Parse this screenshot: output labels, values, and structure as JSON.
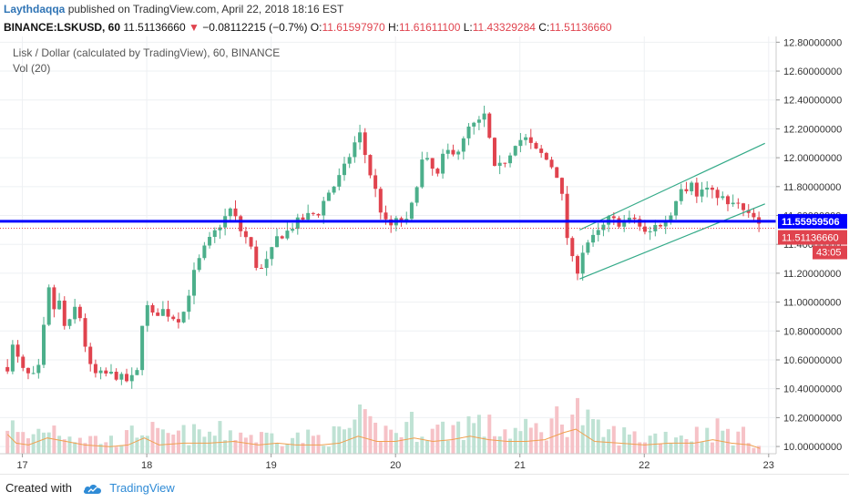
{
  "header": {
    "author": "Laythdaqqa",
    "published_text": "published on TradingView.com, April 22, 2018 18:16 EST"
  },
  "quote": {
    "symbol": "BINANCE:LSKUSD, 60",
    "last": "11.51136660",
    "arrow": "▼",
    "change": "−0.08112215 (−0.7%)",
    "o_label": "O:",
    "o": "11.61597970",
    "h_label": "H:",
    "h": "11.61611100",
    "l_label": "L:",
    "l": "11.43329284",
    "c_label": "C:",
    "c": "11.51136660"
  },
  "legend": {
    "title": "Lisk / Dollar (calculated by TradingView), 60, BINANCE",
    "volume": "Vol (20)"
  },
  "footer": {
    "created_with": "Created with",
    "brand": "TradingView"
  },
  "colors": {
    "up": "#4caf8b",
    "down": "#e0434e",
    "up_vol": "#bfe2d4",
    "down_vol": "#f6c2c7",
    "hline": "#0000ff",
    "channel": "#33aa88",
    "vol_ma": "#f0a050",
    "price_label_bg": "#e0434e",
    "hline_label_bg": "#0000ff"
  },
  "chart_data": {
    "type": "candlestick",
    "title": "Lisk / Dollar (calculated by TradingView), 60, BINANCE",
    "x_tick_labels": [
      "17",
      "18",
      "19",
      "20",
      "21",
      "22",
      "23"
    ],
    "y_tick_labels": [
      "10.00000000",
      "10.20000000",
      "10.40000000",
      "10.60000000",
      "10.80000000",
      "11.00000000",
      "11.20000000",
      "11.40000000",
      "11.60000000",
      "11.80000000",
      "12.00000000",
      "12.20000000",
      "12.40000000",
      "12.60000000",
      "12.80000000"
    ],
    "ylim": [
      9.95,
      12.84
    ],
    "horizontal_line": {
      "value": 11.55959506,
      "label": "11.55959506"
    },
    "last_price": {
      "value": 11.5113666,
      "label": "11.51136660",
      "countdown": "43:05"
    },
    "trend_channel": [
      {
        "start": {
          "x": 21.48,
          "y": 11.16
        },
        "end": {
          "x": 22.97,
          "y": 11.68
        }
      },
      {
        "start": {
          "x": 21.48,
          "y": 11.5
        },
        "end": {
          "x": 22.97,
          "y": 12.1
        }
      }
    ],
    "price_path": [
      [
        16.88,
        10.55
      ],
      [
        16.93,
        10.72
      ],
      [
        16.98,
        10.55
      ],
      [
        17.03,
        10.5
      ],
      [
        17.1,
        10.48
      ],
      [
        17.15,
        10.58
      ],
      [
        17.2,
        11.13
      ],
      [
        17.25,
        10.95
      ],
      [
        17.3,
        11.0
      ],
      [
        17.35,
        10.78
      ],
      [
        17.42,
        10.96
      ],
      [
        17.48,
        10.87
      ],
      [
        17.52,
        10.6
      ],
      [
        17.57,
        10.5
      ],
      [
        17.65,
        10.5
      ],
      [
        17.72,
        10.5
      ],
      [
        17.78,
        10.48
      ],
      [
        17.85,
        10.45
      ],
      [
        17.92,
        10.5
      ],
      [
        17.98,
        11.0
      ],
      [
        18.05,
        10.9
      ],
      [
        18.12,
        10.95
      ],
      [
        18.2,
        10.9
      ],
      [
        18.28,
        10.88
      ],
      [
        18.38,
        11.2
      ],
      [
        18.45,
        11.35
      ],
      [
        18.52,
        11.45
      ],
      [
        18.6,
        11.55
      ],
      [
        18.68,
        11.65
      ],
      [
        18.75,
        11.5
      ],
      [
        18.82,
        11.42
      ],
      [
        18.9,
        11.2
      ],
      [
        18.98,
        11.3
      ],
      [
        19.05,
        11.45
      ],
      [
        19.12,
        11.48
      ],
      [
        19.2,
        11.55
      ],
      [
        19.3,
        11.6
      ],
      [
        19.38,
        11.62
      ],
      [
        19.45,
        11.75
      ],
      [
        19.52,
        11.82
      ],
      [
        19.6,
        11.95
      ],
      [
        19.68,
        12.12
      ],
      [
        19.72,
        12.17
      ],
      [
        19.77,
        11.96
      ],
      [
        19.85,
        11.74
      ],
      [
        19.9,
        11.57
      ],
      [
        19.95,
        11.52
      ],
      [
        20.02,
        11.57
      ],
      [
        20.1,
        11.55
      ],
      [
        20.17,
        11.82
      ],
      [
        20.22,
        12.0
      ],
      [
        20.28,
        11.95
      ],
      [
        20.33,
        11.85
      ],
      [
        20.38,
        12.0
      ],
      [
        20.43,
        12.05
      ],
      [
        20.5,
        12.05
      ],
      [
        20.55,
        12.12
      ],
      [
        20.6,
        12.23
      ],
      [
        20.65,
        12.22
      ],
      [
        20.72,
        12.3
      ],
      [
        20.8,
        11.9
      ],
      [
        20.85,
        11.95
      ],
      [
        20.9,
        12.0
      ],
      [
        20.97,
        12.12
      ],
      [
        21.05,
        12.13
      ],
      [
        21.12,
        12.05
      ],
      [
        21.18,
        12.02
      ],
      [
        21.25,
        11.95
      ],
      [
        21.32,
        11.85
      ],
      [
        21.38,
        11.45
      ],
      [
        21.45,
        11.18
      ],
      [
        21.5,
        11.35
      ],
      [
        21.55,
        11.42
      ],
      [
        21.6,
        11.45
      ],
      [
        21.65,
        11.5
      ],
      [
        21.72,
        11.58
      ],
      [
        21.78,
        11.55
      ],
      [
        21.85,
        11.55
      ],
      [
        21.92,
        11.58
      ],
      [
        21.98,
        11.5
      ],
      [
        22.03,
        11.45
      ],
      [
        22.08,
        11.55
      ],
      [
        22.13,
        11.52
      ],
      [
        22.18,
        11.58
      ],
      [
        22.23,
        11.62
      ],
      [
        22.28,
        11.82
      ],
      [
        22.33,
        11.78
      ],
      [
        22.38,
        11.85
      ],
      [
        22.43,
        11.7
      ],
      [
        22.48,
        11.82
      ],
      [
        22.53,
        11.75
      ],
      [
        22.58,
        11.75
      ],
      [
        22.63,
        11.72
      ],
      [
        22.68,
        11.65
      ],
      [
        22.73,
        11.7
      ],
      [
        22.78,
        11.64
      ],
      [
        22.83,
        11.6
      ],
      [
        22.88,
        11.58
      ],
      [
        22.93,
        11.51
      ]
    ],
    "volume_path": [
      [
        16.88,
        0.55
      ],
      [
        16.95,
        0.3
      ],
      [
        17.05,
        0.25
      ],
      [
        17.2,
        0.45
      ],
      [
        17.35,
        0.35
      ],
      [
        17.5,
        0.25
      ],
      [
        17.7,
        0.2
      ],
      [
        17.85,
        0.25
      ],
      [
        17.98,
        0.45
      ],
      [
        18.1,
        0.25
      ],
      [
        18.3,
        0.3
      ],
      [
        18.5,
        0.3
      ],
      [
        18.7,
        0.35
      ],
      [
        18.9,
        0.25
      ],
      [
        19.05,
        0.3
      ],
      [
        19.2,
        0.25
      ],
      [
        19.4,
        0.25
      ],
      [
        19.55,
        0.3
      ],
      [
        19.7,
        0.5
      ],
      [
        19.85,
        0.35
      ],
      [
        20.0,
        0.35
      ],
      [
        20.15,
        0.45
      ],
      [
        20.3,
        0.35
      ],
      [
        20.45,
        0.4
      ],
      [
        20.6,
        0.5
      ],
      [
        20.75,
        0.4
      ],
      [
        20.9,
        0.35
      ],
      [
        21.05,
        0.35
      ],
      [
        21.2,
        0.4
      ],
      [
        21.35,
        0.6
      ],
      [
        21.45,
        0.7
      ],
      [
        21.6,
        0.35
      ],
      [
        21.8,
        0.3
      ],
      [
        22.0,
        0.25
      ],
      [
        22.2,
        0.3
      ],
      [
        22.4,
        0.3
      ],
      [
        22.55,
        0.4
      ],
      [
        22.7,
        0.3
      ],
      [
        22.85,
        0.25
      ],
      [
        22.93,
        0.15
      ]
    ]
  }
}
